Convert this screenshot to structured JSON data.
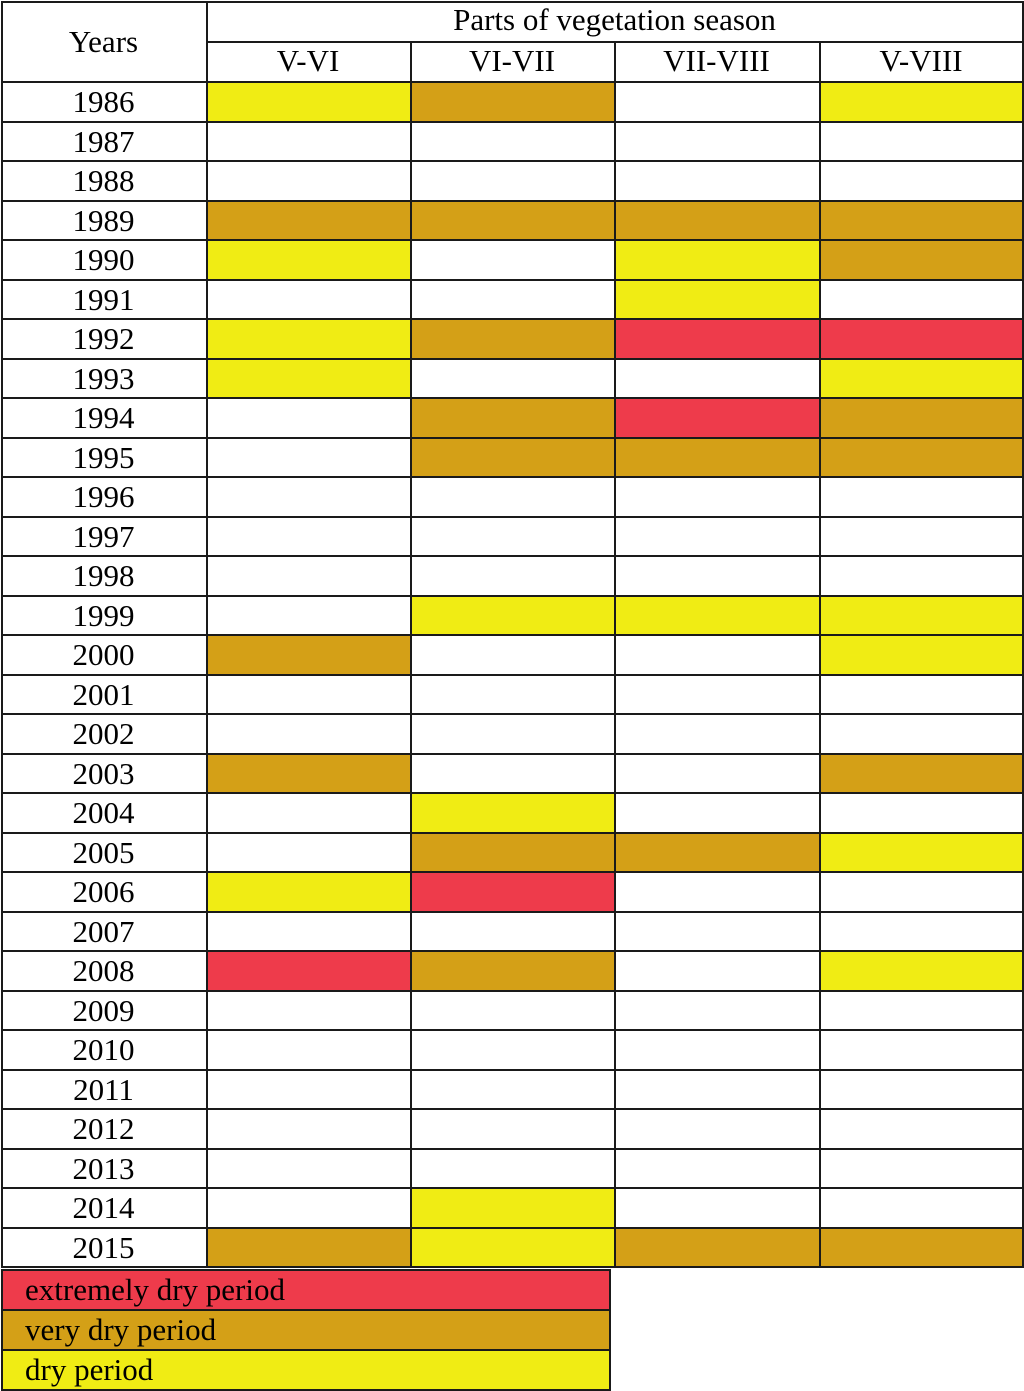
{
  "table": {
    "row_header": "Years",
    "group_header": "Parts of vegetation season",
    "columns": [
      "V-VI",
      "VI-VII",
      "VII-VIII",
      "V-VIII"
    ]
  },
  "colors": {
    "extreme": "#ee3b4b",
    "very": "#d4a017",
    "dry": "#f0ec14",
    "none": "#ffffff"
  },
  "chart_data": {
    "type": "table",
    "title": "",
    "columns": [
      "V-VI",
      "VI-VII",
      "VII-VIII",
      "V-VIII"
    ],
    "rows": [
      {
        "year": "1986",
        "values": [
          "dry",
          "very",
          "none",
          "dry"
        ]
      },
      {
        "year": "1987",
        "values": [
          "none",
          "none",
          "none",
          "none"
        ]
      },
      {
        "year": "1988",
        "values": [
          "none",
          "none",
          "none",
          "none"
        ]
      },
      {
        "year": "1989",
        "values": [
          "very",
          "very",
          "very",
          "very"
        ]
      },
      {
        "year": "1990",
        "values": [
          "dry",
          "none",
          "dry",
          "very"
        ]
      },
      {
        "year": "1991",
        "values": [
          "none",
          "none",
          "dry",
          "none"
        ]
      },
      {
        "year": "1992",
        "values": [
          "dry",
          "very",
          "extreme",
          "extreme"
        ]
      },
      {
        "year": "1993",
        "values": [
          "dry",
          "none",
          "none",
          "dry"
        ]
      },
      {
        "year": "1994",
        "values": [
          "none",
          "very",
          "extreme",
          "very"
        ]
      },
      {
        "year": "1995",
        "values": [
          "none",
          "very",
          "very",
          "very"
        ]
      },
      {
        "year": "1996",
        "values": [
          "none",
          "none",
          "none",
          "none"
        ]
      },
      {
        "year": "1997",
        "values": [
          "none",
          "none",
          "none",
          "none"
        ]
      },
      {
        "year": "1998",
        "values": [
          "none",
          "none",
          "none",
          "none"
        ]
      },
      {
        "year": "1999",
        "values": [
          "none",
          "dry",
          "dry",
          "dry"
        ]
      },
      {
        "year": "2000",
        "values": [
          "very",
          "none",
          "none",
          "dry"
        ]
      },
      {
        "year": "2001",
        "values": [
          "none",
          "none",
          "none",
          "none"
        ]
      },
      {
        "year": "2002",
        "values": [
          "none",
          "none",
          "none",
          "none"
        ]
      },
      {
        "year": "2003",
        "values": [
          "very",
          "none",
          "none",
          "very"
        ]
      },
      {
        "year": "2004",
        "values": [
          "none",
          "dry",
          "none",
          "none"
        ]
      },
      {
        "year": "2005",
        "values": [
          "none",
          "very",
          "very",
          "dry"
        ]
      },
      {
        "year": "2006",
        "values": [
          "dry",
          "extreme",
          "none",
          "none"
        ]
      },
      {
        "year": "2007",
        "values": [
          "none",
          "none",
          "none",
          "none"
        ]
      },
      {
        "year": "2008",
        "values": [
          "extreme",
          "very",
          "none",
          "dry"
        ]
      },
      {
        "year": "2009",
        "values": [
          "none",
          "none",
          "none",
          "none"
        ]
      },
      {
        "year": "2010",
        "values": [
          "none",
          "none",
          "none",
          "none"
        ]
      },
      {
        "year": "2011",
        "values": [
          "none",
          "none",
          "none",
          "none"
        ]
      },
      {
        "year": "2012",
        "values": [
          "none",
          "none",
          "none",
          "none"
        ]
      },
      {
        "year": "2013",
        "values": [
          "none",
          "none",
          "none",
          "none"
        ]
      },
      {
        "year": "2014",
        "values": [
          "none",
          "dry",
          "none",
          "none"
        ]
      },
      {
        "year": "2015",
        "values": [
          "very",
          "dry",
          "very",
          "very"
        ]
      }
    ]
  },
  "legend": [
    {
      "key": "extreme",
      "label": "extremely dry period"
    },
    {
      "key": "very",
      "label": "very dry period"
    },
    {
      "key": "dry",
      "label": "dry period"
    }
  ]
}
